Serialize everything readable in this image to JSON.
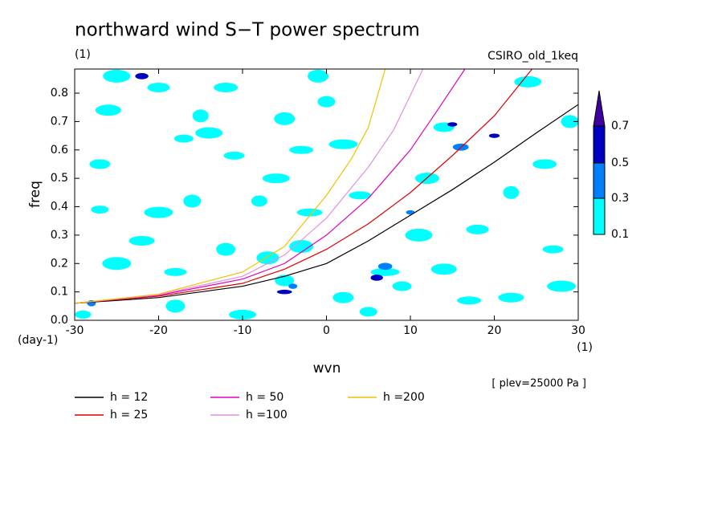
{
  "chart_data": {
    "type": "contour-line",
    "title": "northward wind S−T power spectrum",
    "subtitle": "(1)",
    "source": "CSIRO_old_1keq",
    "xlabel": "wvn",
    "ylabel": "freq",
    "y_unit": "(day-1)",
    "x_unit": "(1)",
    "note": "[ plev=25000 Pa ]",
    "xlim": [
      -30,
      30
    ],
    "ylim": [
      0,
      0.885
    ],
    "xticks": [
      -30,
      -20,
      -10,
      0,
      10,
      20,
      30
    ],
    "yticks": [
      {
        "value": 0,
        "label": "0.0"
      },
      0.1,
      0.2,
      0.3,
      0.4,
      0.5,
      0.6,
      0.7,
      0.8
    ],
    "levels": [
      0.1,
      0.3,
      0.5,
      0.7
    ],
    "level_colors": [
      "#00ffff",
      "#0080ff",
      "#0000c0",
      "#4000a0"
    ],
    "patches": [
      [
        -29,
        0.02,
        0.1
      ],
      [
        -25,
        0.86,
        0.1
      ],
      [
        -22,
        0.86,
        0.5
      ],
      [
        -27,
        0.55,
        0.1
      ],
      [
        -27,
        0.39,
        0.1
      ],
      [
        -25,
        0.2,
        0.1
      ],
      [
        -26,
        0.74,
        0.1
      ],
      [
        -20,
        0.82,
        0.1
      ],
      [
        -17,
        0.64,
        0.1
      ],
      [
        -15,
        0.72,
        0.1
      ],
      [
        -14,
        0.66,
        0.1
      ],
      [
        -12,
        0.82,
        0.1
      ],
      [
        -11,
        0.58,
        0.1
      ],
      [
        -16,
        0.42,
        0.1
      ],
      [
        -20,
        0.38,
        0.1
      ],
      [
        -22,
        0.28,
        0.1
      ],
      [
        -18,
        0.17,
        0.1
      ],
      [
        -12,
        0.25,
        0.1
      ],
      [
        -8,
        0.42,
        0.1
      ],
      [
        -6,
        0.5,
        0.1
      ],
      [
        -3,
        0.6,
        0.1
      ],
      [
        -5,
        0.71,
        0.1
      ],
      [
        0,
        0.77,
        0.1
      ],
      [
        2,
        0.62,
        0.1
      ],
      [
        -2,
        0.38,
        0.1
      ],
      [
        -7,
        0.22,
        0.1
      ],
      [
        -5,
        0.14,
        0.1
      ],
      [
        -4,
        0.12,
        0.3
      ],
      [
        -5,
        0.1,
        0.5
      ],
      [
        -3,
        0.26,
        0.1
      ],
      [
        2,
        0.08,
        0.1
      ],
      [
        5,
        0.03,
        0.1
      ],
      [
        7,
        0.17,
        0.1
      ],
      [
        7,
        0.19,
        0.3
      ],
      [
        6,
        0.15,
        0.5
      ],
      [
        9,
        0.12,
        0.1
      ],
      [
        10,
        0.38,
        0.3
      ],
      [
        11,
        0.3,
        0.1
      ],
      [
        12,
        0.5,
        0.1
      ],
      [
        14,
        0.68,
        0.1
      ],
      [
        15,
        0.69,
        0.5
      ],
      [
        16,
        0.61,
        0.3
      ],
      [
        14,
        0.18,
        0.1
      ],
      [
        18,
        0.32,
        0.1
      ],
      [
        20,
        0.65,
        0.5
      ],
      [
        22,
        0.45,
        0.1
      ],
      [
        24,
        0.84,
        0.1
      ],
      [
        26,
        0.55,
        0.1
      ],
      [
        27,
        0.25,
        0.1
      ],
      [
        29,
        0.7,
        0.1
      ],
      [
        28,
        0.12,
        0.1
      ],
      [
        22,
        0.08,
        0.1
      ],
      [
        4,
        0.44,
        0.1
      ],
      [
        -18,
        0.05,
        0.1
      ],
      [
        -28,
        0.06,
        0.3
      ],
      [
        -10,
        0.02,
        0.1
      ],
      [
        17,
        0.07,
        0.1
      ],
      [
        -1,
        0.86,
        0.1
      ]
    ],
    "series": [
      {
        "name": "h = 12",
        "color": "#000000",
        "x": [
          -30,
          -20,
          -10,
          -5,
          0,
          5,
          10,
          15,
          20,
          25,
          30
        ],
        "values": [
          0.06,
          0.08,
          0.12,
          0.155,
          0.2,
          0.28,
          0.37,
          0.46,
          0.557,
          0.66,
          0.76
        ]
      },
      {
        "name": "h = 25",
        "color": "#e00000",
        "x": [
          -30,
          -20,
          -10,
          -5,
          0,
          5,
          10,
          15,
          20,
          24.5
        ],
        "values": [
          0.06,
          0.085,
          0.13,
          0.18,
          0.25,
          0.34,
          0.45,
          0.58,
          0.72,
          0.885
        ]
      },
      {
        "name": "h = 50",
        "color": "#e000c0",
        "x": [
          -30,
          -20,
          -10,
          -5,
          0,
          5,
          10,
          13,
          16.5
        ],
        "values": [
          0.06,
          0.088,
          0.145,
          0.2,
          0.3,
          0.43,
          0.6,
          0.73,
          0.885
        ]
      },
      {
        "name": "h =100",
        "color": "#e090e0",
        "x": [
          -30,
          -20,
          -10,
          -5,
          0,
          5,
          8,
          11.5
        ],
        "values": [
          0.06,
          0.09,
          0.155,
          0.23,
          0.36,
          0.54,
          0.67,
          0.885
        ]
      },
      {
        "name": "h =200",
        "color": "#f0c000",
        "x": [
          -30,
          -20,
          -10,
          -5,
          0,
          3,
          5,
          7
        ],
        "values": [
          0.06,
          0.092,
          0.17,
          0.26,
          0.44,
          0.57,
          0.68,
          0.885
        ]
      }
    ]
  }
}
